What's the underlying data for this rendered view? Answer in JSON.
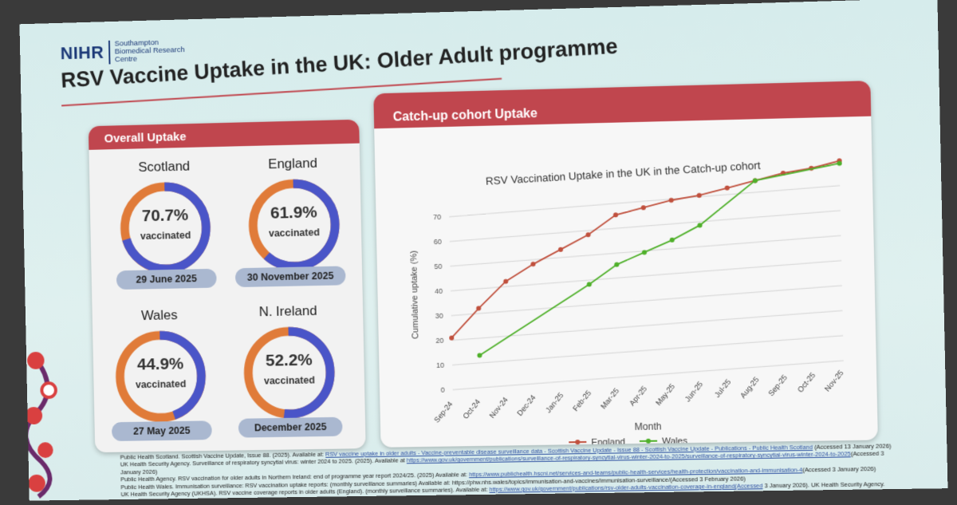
{
  "logo": {
    "mark": "NIHR",
    "lines": [
      "Southampton",
      "Biomedical Research",
      "Centre"
    ]
  },
  "title": "RSV Vaccine Uptake in the UK: Older Adult programme",
  "overall": {
    "header": "Overall Uptake",
    "vaccinated_label": "vaccinated",
    "regions": [
      {
        "name": "Scotland",
        "pct_text": "70.7%",
        "pct": 70.7,
        "date": "29 June 2025"
      },
      {
        "name": "England",
        "pct_text": "61.9%",
        "pct": 61.9,
        "date": "30 November 2025"
      },
      {
        "name": "Wales",
        "pct_text": "44.9%",
        "pct": 44.9,
        "date": "27 May 2025"
      },
      {
        "name": "N. Ireland",
        "pct_text": "52.2%",
        "pct": 52.2,
        "date": "December 2025"
      }
    ]
  },
  "colors": {
    "accent": "#c0464e",
    "vaccinated": "#4a55c8",
    "unvaccinated": "#e07b39",
    "england": "#c0503d",
    "wales": "#4fb02a"
  },
  "chart_panel": {
    "header": "Catch-up cohort Uptake"
  },
  "chart_data": {
    "type": "line",
    "title": "RSV Vaccination Uptake in the UK in the Catch-up cohort",
    "xlabel": "Month",
    "ylabel": "Cumulative uptake (%)",
    "ylim": [
      0,
      80
    ],
    "yticks": [
      0,
      10,
      20,
      30,
      40,
      50,
      60,
      70
    ],
    "categories": [
      "Sep-24",
      "Oct-24",
      "Nov-24",
      "Dec-24",
      "Jan-25",
      "Feb-25",
      "Mar-25",
      "Apr-25",
      "May-25",
      "Jun-25",
      "Jul-25",
      "Aug-25",
      "Sep-25",
      "Oct-25",
      "Nov-25"
    ],
    "series": [
      {
        "name": "England",
        "values": [
          21,
          32,
          42,
          48,
          53,
          58,
          65,
          67,
          69,
          70,
          72,
          74,
          76,
          77,
          79
        ]
      },
      {
        "name": "Wales",
        "values": [
          null,
          13,
          null,
          null,
          null,
          38,
          45,
          49,
          53,
          58,
          null,
          74,
          null,
          null,
          78
        ]
      }
    ],
    "legend": "bottom"
  },
  "references": [
    {
      "text": "Public Health Scotland. Scottish Vaccine Update, Issue 88. (2025). Available at: ",
      "link": "RSV vaccine uptake in older adults - Vaccine-preventable disease surveillance data - Scottish Vaccine Update - Issue 88 - Scottish Vaccine Update - Publications - Public Health Scotland",
      "tail": " (Accessed 13 January 2026)"
    },
    {
      "text": "UK Health Security Agency. Surveillance of respiratory syncytial virus: winter 2024 to 2025. (2025). Available at ",
      "link": "https://www.gov.uk/government/publications/surveillance-of-respiratory-syncytial-virus-winter-2024-to-2025/surveillance-of-respiratory-syncytial-virus-winter-2024-to-2025",
      "tail": "(Accessed 3"
    },
    {
      "text": "January 2026)",
      "link": "",
      "tail": ""
    },
    {
      "text": "Public Health Agency. RSV vaccination for older adults in Northern Ireland: end of programme year report 2024/25. (2025) Available at: ",
      "link": "https://www.publichealth.hscni.net/services-and-teams/public-health-services/health-protection/vaccination-and-immunisation-4",
      "tail": "(Accessed 3 January 2026)"
    },
    {
      "text": "Public Health Wales. Immunisation surveillance: RSV vaccination uptake reports: (monthly surveillance summaries) Available at: https://phw.nhs.wales/topics/immunisation-and-vaccines/immunisation-surveillance/(Accessed 3 February 2026)",
      "link": "",
      "tail": ""
    },
    {
      "text": "UK Health Security Agency (UKHSA). RSV vaccine coverage reports in older adults (England). (monthly surveillance summaries). Available at: ",
      "link": "https://www.gov.uk/government/publications/rsv-older-adults-vaccination-coverage-in-england(Accessed",
      "tail": " 3 January 2026). UK Health Security Agency."
    }
  ]
}
